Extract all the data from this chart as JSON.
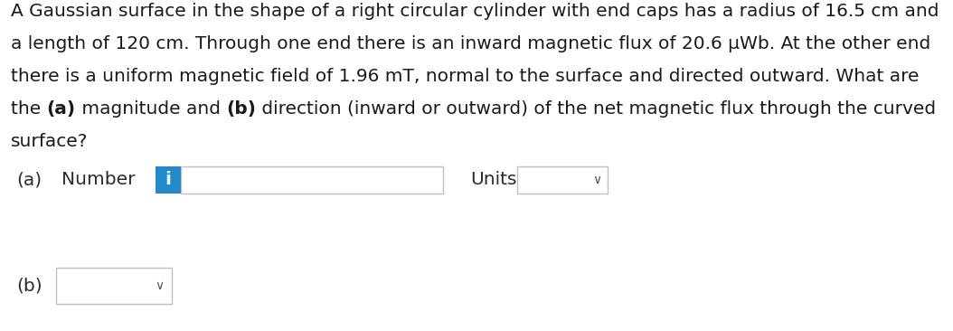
{
  "background_color": "#ffffff",
  "paragraph_line4_parts": [
    [
      "the ",
      false
    ],
    [
      "(a)",
      true
    ],
    [
      " magnitude and ",
      false
    ],
    [
      "(b)",
      true
    ],
    [
      " direction (inward or outward) of the net magnetic flux through the curved",
      false
    ]
  ],
  "text_lines": [
    "A Gaussian surface in the shape of a right circular cylinder with end caps has a radius of 16.5 cm and",
    "a length of 120 cm. Through one end there is an inward magnetic flux of 20.6 μWb. At the other end",
    "there is a uniform magnetic field of 1.96 mT, normal to the surface and directed outward. What are",
    "",
    "surface?"
  ],
  "label_a": "(a)",
  "label_number": "Number",
  "label_units": "Units",
  "label_b": "(b)",
  "info_button_color": "#2489c8",
  "info_button_text": "i",
  "info_button_text_color": "#ffffff",
  "box_border_color": "#c0c0c0",
  "font_size_text": 14.5,
  "text_color": "#1a1a1a",
  "label_color": "#1a1a1a",
  "row_a_label_color": "#2b2b2b",
  "chevron_color": "#555555"
}
